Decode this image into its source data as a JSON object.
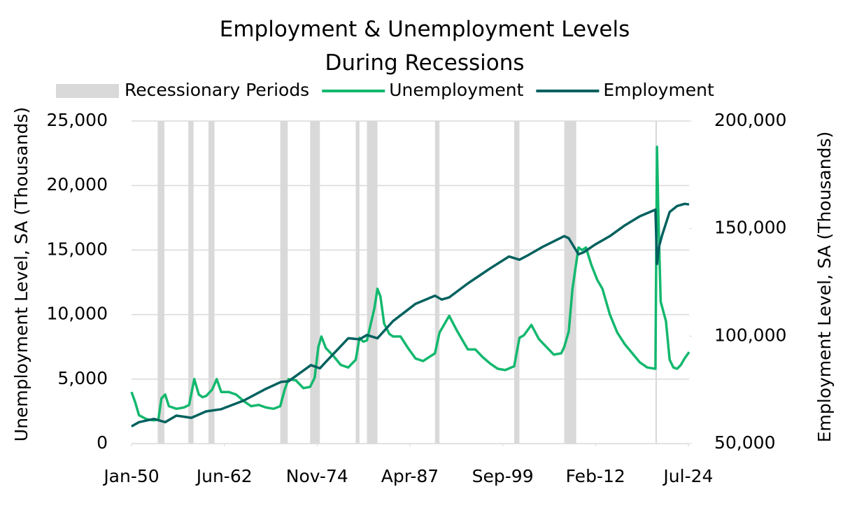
{
  "chart_data": {
    "type": "line",
    "title": "Employment & Unemployment Levels During Recessions",
    "y_label": "Unemployment Level, SA (Thousands)",
    "y2_label": "Employment Level, SA (Thousands)",
    "xlim": [
      1950,
      2024.6
    ],
    "xticks": [
      {
        "value": 1950.0,
        "label": "Jan-50"
      },
      {
        "value": 1962.42,
        "label": "Jun-62"
      },
      {
        "value": 1974.83,
        "label": "Nov-74"
      },
      {
        "value": 1987.25,
        "label": "Apr-87"
      },
      {
        "value": 1999.67,
        "label": "Sep-99"
      },
      {
        "value": 2012.08,
        "label": "Feb-12"
      },
      {
        "value": 2024.5,
        "label": "Jul-24"
      }
    ],
    "ylim": [
      0,
      25000
    ],
    "yticks": [
      0,
      {
        "value": 5000,
        "label": "5,000"
      },
      {
        "value": 10000,
        "label": "10,000"
      },
      {
        "value": 15000,
        "label": "15,000"
      },
      {
        "value": 20000,
        "label": "20,000"
      },
      {
        "value": 25000,
        "label": "25,000"
      }
    ],
    "y2lim": [
      50000,
      200000
    ],
    "y2ticks": [
      {
        "value": 50000,
        "label": "50,000"
      },
      {
        "value": 100000,
        "label": "100,000"
      },
      {
        "value": 150000,
        "label": "150,000"
      },
      {
        "value": 200000,
        "label": "200,000"
      }
    ],
    "grid": true,
    "recessions": {
      "name": "Recessionary Periods",
      "color": "#d9d9d9",
      "ranges": [
        [
          1953.5,
          1954.4
        ],
        [
          1957.6,
          1958.3
        ],
        [
          1960.3,
          1961.1
        ],
        [
          1969.9,
          1970.9
        ],
        [
          1973.9,
          1975.2
        ],
        [
          1980.0,
          1980.5
        ],
        [
          1981.5,
          1982.9
        ],
        [
          1990.6,
          1991.2
        ],
        [
          2001.2,
          2001.9
        ],
        [
          2007.9,
          2009.5
        ],
        [
          2020.1,
          2020.3
        ]
      ]
    },
    "series": [
      {
        "name": "Unemployment",
        "color": "#13b86e",
        "x": [
          1950.0,
          1950.5,
          1951,
          1952,
          1953,
          1953.6,
          1954.0,
          1954.5,
          1955,
          1956,
          1957,
          1957.7,
          1958.4,
          1959,
          1959.5,
          1960,
          1960.8,
          1961.4,
          1962,
          1963,
          1964,
          1965,
          1966,
          1967,
          1968,
          1969,
          1969.9,
          1970.5,
          1971,
          1972,
          1973,
          1973.9,
          1974.5,
          1975.0,
          1975.4,
          1976,
          1977,
          1978,
          1979,
          1980.0,
          1980.5,
          1981,
          1981.5,
          1982.5,
          1982.9,
          1983.3,
          1983.8,
          1984.5,
          1985,
          1986,
          1987,
          1988,
          1989,
          1990.6,
          1991.2,
          1992.5,
          1993.5,
          1994.5,
          1995,
          1996,
          1997,
          1998,
          1999,
          2000,
          2001.2,
          2001.9,
          2002.5,
          2003.5,
          2004.5,
          2005.5,
          2006.5,
          2007.5,
          2007.9,
          2008.5,
          2009.0,
          2009.8,
          2010.3,
          2010.8,
          2011.5,
          2012.3,
          2013,
          2014,
          2015,
          2016,
          2017,
          2018,
          2019,
          2020.1,
          2020.3,
          2020.5,
          2020.8,
          2021.5,
          2022,
          2022.5,
          2023,
          2023.5,
          2024,
          2024.6
        ],
        "values": [
          4000,
          3200,
          2200,
          1900,
          1800,
          1900,
          3500,
          3800,
          2900,
          2700,
          2800,
          3000,
          5000,
          3800,
          3600,
          3700,
          4200,
          5000,
          4000,
          4000,
          3800,
          3300,
          2900,
          3000,
          2800,
          2700,
          2900,
          4200,
          5000,
          4900,
          4300,
          4400,
          5100,
          7500,
          8300,
          7400,
          6800,
          6100,
          5900,
          6500,
          8200,
          7900,
          8000,
          10500,
          12000,
          11400,
          9300,
          8500,
          8300,
          8300,
          7400,
          6600,
          6400,
          7000,
          8600,
          9900,
          8800,
          7800,
          7300,
          7300,
          6700,
          6200,
          5800,
          5700,
          6000,
          8200,
          8400,
          9200,
          8100,
          7500,
          6900,
          7000,
          7500,
          8700,
          12000,
          15200,
          15000,
          15200,
          13900,
          12700,
          12000,
          10000,
          8600,
          7700,
          7000,
          6300,
          5900,
          5800,
          23000,
          17500,
          11000,
          9500,
          6500,
          5900,
          5800,
          6100,
          6600,
          7100
        ]
      },
      {
        "name": "Employment",
        "color": "#00615e",
        "axis": "y2",
        "x": [
          1950,
          1951,
          1953,
          1954.5,
          1956,
          1958,
          1960,
          1962,
          1965,
          1968,
          1970,
          1971,
          1974,
          1975.2,
          1976,
          1979,
          1980.5,
          1981.5,
          1982.9,
          1985,
          1988,
          1990.6,
          1991.5,
          1992.5,
          1995,
          1998,
          2000.5,
          2001.9,
          2003,
          2005,
          2007.9,
          2008.5,
          2009.8,
          2010.5,
          2012,
          2014,
          2016,
          2018,
          2020.1,
          2020.3,
          2020.6,
          2021,
          2022,
          2023,
          2024,
          2024.6
        ],
        "values": [
          58000,
          60000,
          61500,
          60000,
          63000,
          62000,
          65000,
          66000,
          70000,
          75500,
          78700,
          79000,
          86500,
          85000,
          88000,
          99000,
          98500,
          100500,
          99000,
          107000,
          115000,
          118800,
          117000,
          118000,
          124500,
          131500,
          137000,
          135500,
          137500,
          141500,
          146500,
          145500,
          138000,
          139000,
          142500,
          146500,
          151500,
          155700,
          158800,
          133500,
          142000,
          147000,
          157700,
          160500,
          161500,
          161200
        ]
      }
    ]
  }
}
